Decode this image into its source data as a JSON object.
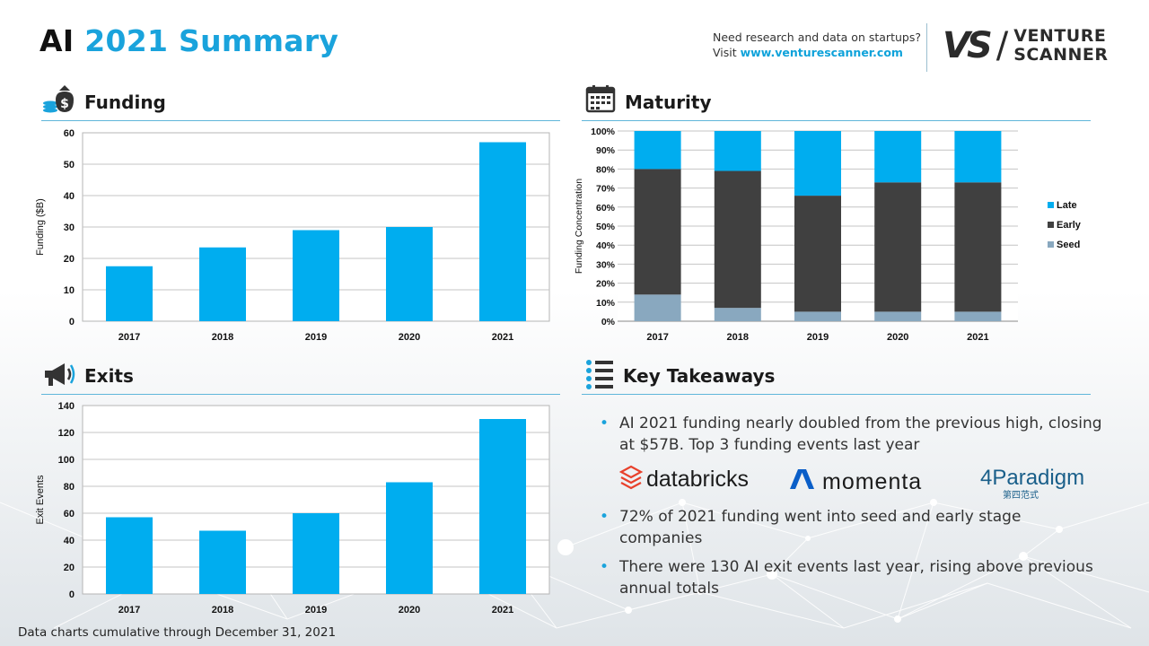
{
  "header": {
    "title_ai": "AI",
    "title_rest": "2021 Summary",
    "promo_line1": "Need research and data on startups?",
    "promo_visit": "Visit ",
    "promo_link": "www.venturescanner.com",
    "brand_mark": "VS",
    "brand_name_line1": "VENTURE",
    "brand_name_line2": "SCANNER"
  },
  "sections": {
    "funding": "Funding",
    "maturity": "Maturity",
    "exits": "Exits",
    "takeaways": "Key Takeaways"
  },
  "colors": {
    "accent": "#00adef",
    "early": "#404040",
    "seed": "#89a8bf",
    "rule": "#5fb6da"
  },
  "chart_data": [
    {
      "type": "bar",
      "id": "funding",
      "categories": [
        "2017",
        "2018",
        "2019",
        "2020",
        "2021"
      ],
      "values": [
        17.5,
        23.5,
        29,
        30,
        57
      ],
      "xlabel": "",
      "ylabel": "Funding ($B)",
      "ylim": [
        0,
        60
      ],
      "yticks": [
        0,
        10,
        20,
        30,
        40,
        50,
        60
      ],
      "grid": true
    },
    {
      "type": "bar",
      "id": "maturity",
      "stacked": true,
      "categories": [
        "2017",
        "2018",
        "2019",
        "2020",
        "2021"
      ],
      "series": [
        {
          "name": "Seed",
          "values": [
            14,
            7,
            5,
            5,
            5
          ]
        },
        {
          "name": "Early",
          "values": [
            66,
            72,
            61,
            68,
            68
          ]
        },
        {
          "name": "Late",
          "values": [
            20,
            21,
            34,
            27,
            27
          ]
        }
      ],
      "ylabel": "Funding Concentration",
      "ylim": [
        0,
        100
      ],
      "yticks": [
        "0%",
        "10%",
        "20%",
        "30%",
        "40%",
        "50%",
        "60%",
        "70%",
        "80%",
        "90%",
        "100%"
      ],
      "legend": "right",
      "grid": true
    },
    {
      "type": "bar",
      "id": "exits",
      "categories": [
        "2017",
        "2018",
        "2019",
        "2020",
        "2021"
      ],
      "values": [
        57,
        47,
        60,
        83,
        130
      ],
      "ylabel": "Exit Events",
      "ylim": [
        0,
        140
      ],
      "yticks": [
        0,
        20,
        40,
        60,
        80,
        100,
        120,
        140
      ],
      "grid": true
    }
  ],
  "takeaways": {
    "bullet": "•",
    "items": [
      "AI 2021 funding nearly doubled from the previous high, closing at $57B. Top 3 funding events last year",
      "72% of 2021 funding went into seed and early stage companies",
      "There were 130 AI exit events last year, rising above previous annual totals"
    ],
    "logos": [
      "databricks",
      "momenta",
      "4Paradigm",
      "第四范式"
    ]
  },
  "footnote": "Data charts cumulative through December 31, 2021"
}
